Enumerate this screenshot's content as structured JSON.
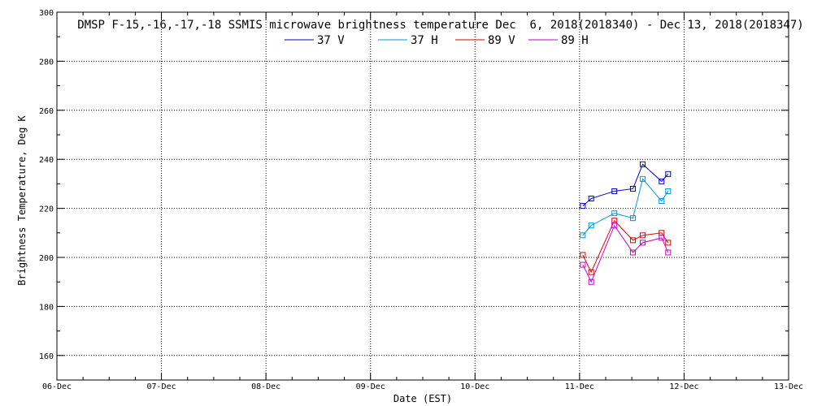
{
  "chart_data": {
    "type": "line",
    "title": "DMSP F-15,-16,-17,-18 SSMIS microwave brightness temperature Dec  6, 2018(2018340) - Dec 13, 2018(2018347)",
    "xlabel": "Date (EST)",
    "ylabel": "Brightness Temperature, Deg K",
    "xlim": [
      "2018-12-06T00:00",
      "2018-12-13T00:00"
    ],
    "ylim": [
      150,
      300
    ],
    "x_ticks": [
      "06-Dec",
      "07-Dec",
      "08-Dec",
      "09-Dec",
      "10-Dec",
      "11-Dec",
      "12-Dec",
      "13-Dec"
    ],
    "y_ticks": [
      160,
      180,
      200,
      220,
      240,
      260,
      280,
      300
    ],
    "grid": true,
    "legend_position": "top-center",
    "x": [
      "2018-12-11T00:45",
      "2018-12-11T02:40",
      "2018-12-11T08:00",
      "2018-12-11T12:15",
      "2018-12-11T14:30",
      "2018-12-11T18:50",
      "2018-12-11T20:20"
    ],
    "series": [
      {
        "name": "37 V",
        "color": "#0000c8",
        "values": [
          221,
          224,
          227,
          228,
          238,
          231,
          234
        ]
      },
      {
        "name": "37 H",
        "color": "#0096dc",
        "values": [
          209,
          213,
          218,
          216,
          232,
          223,
          227
        ]
      },
      {
        "name": "89 V",
        "color": "#dc0000",
        "values": [
          201,
          194,
          215,
          207,
          209,
          210,
          206
        ]
      },
      {
        "name": "89 H",
        "color": "#c800c8",
        "values": [
          197,
          190,
          213,
          202,
          206,
          208,
          202
        ]
      }
    ]
  }
}
